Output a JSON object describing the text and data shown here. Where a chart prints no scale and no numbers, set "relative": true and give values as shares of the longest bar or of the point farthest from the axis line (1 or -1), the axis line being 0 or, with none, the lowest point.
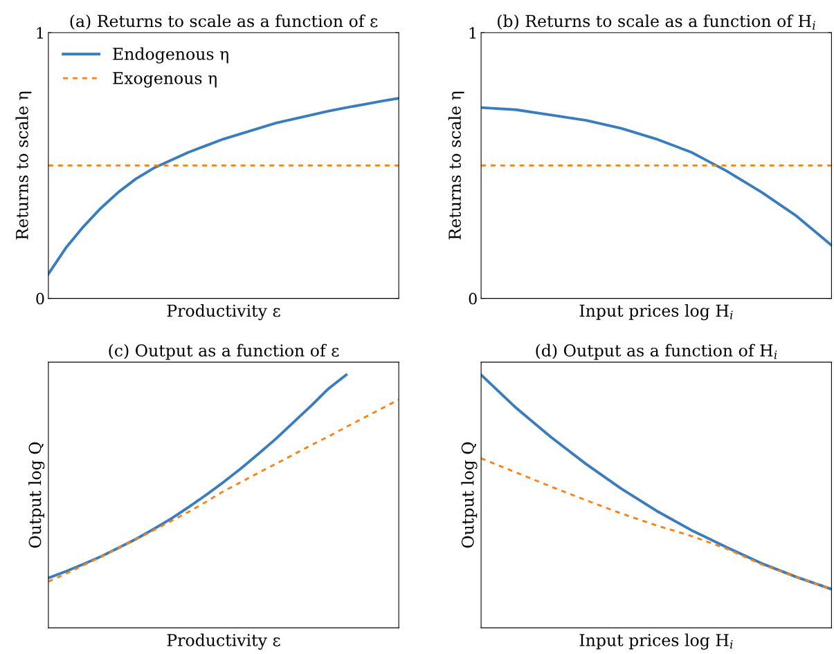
{
  "chart_data": [
    {
      "type": "line",
      "title": "(a) Returns to scale as a function of ε",
      "xlabel": "Productivity ε",
      "ylabel": "Returns to scale η",
      "categories": [
        null,
        null,
        null,
        null,
        null,
        null,
        null,
        null,
        null,
        null,
        null,
        null,
        null,
        null,
        null,
        null,
        null,
        null,
        null,
        null,
        null
      ],
      "series": [
        {
          "name": "Endogenous η",
          "color": "#3a7dbf",
          "line_style": "solid",
          "values": [
            0.092,
            0.19,
            0.27,
            0.34,
            0.4,
            0.45,
            0.49,
            0.52,
            0.55,
            0.575,
            0.6,
            0.62,
            0.64,
            0.66,
            0.675,
            0.69,
            0.705,
            0.718,
            0.73,
            0.742,
            0.753
          ]
        },
        {
          "name": "Exogenous η",
          "color": "#ff7f0e",
          "line_style": "dashed",
          "values": [
            0.5,
            0.5,
            0.5,
            0.5,
            0.5,
            0.5,
            0.5,
            0.5,
            0.5,
            0.5,
            0.5,
            0.5,
            0.5,
            0.5,
            0.5,
            0.5,
            0.5,
            0.5,
            0.5,
            0.5,
            0.5
          ]
        }
      ],
      "ylim": [
        0,
        1
      ],
      "yticks": [
        0,
        1
      ],
      "tick_labels": "y",
      "grid": false,
      "legend": "top left",
      "marker": "none"
    },
    {
      "type": "line",
      "title": "(b) Returns to scale as a function of H$_{i}$",
      "xlabel": "Input prices log H$_{i}$",
      "ylabel": "Returns to scale η",
      "categories": [
        null,
        null,
        null,
        null,
        null,
        null,
        null,
        null,
        null,
        null,
        null
      ],
      "series": [
        {
          "color": "#3a7dbf",
          "line_style": "solid",
          "values": [
            0.718,
            0.71,
            0.69,
            0.67,
            0.64,
            0.6,
            0.55,
            0.48,
            0.4,
            0.31,
            0.2
          ]
        },
        {
          "color": "#ff7f0e",
          "line_style": "dashed",
          "values": [
            0.5,
            0.5,
            0.5,
            0.5,
            0.5,
            0.5,
            0.5,
            0.5,
            0.5,
            0.5,
            0.5
          ]
        }
      ],
      "ylim": [
        0,
        1
      ],
      "yticks": [
        0,
        1
      ],
      "tick_labels": "y",
      "grid": false,
      "marker": "none"
    },
    {
      "type": "line",
      "title": "(c) Output as a function of ε",
      "xlabel": "Productivity ε",
      "ylabel": "Output log Q",
      "relative": true,
      "categories": [
        null,
        null,
        null,
        null,
        null,
        null,
        null,
        null,
        null,
        null,
        null,
        null,
        null,
        null,
        null,
        null,
        null,
        null,
        null,
        null,
        null
      ],
      "series": [
        {
          "color": "#3a7dbf",
          "line_style": "solid",
          "values": [
            0.197,
            0.223,
            0.252,
            0.282,
            0.316,
            0.351,
            0.39,
            0.431,
            0.477,
            0.525,
            0.576,
            0.63,
            0.688,
            0.748,
            0.813,
            0.878,
            0.946,
            1.0,
            null,
            null,
            null
          ]
        },
        {
          "color": "#ff7f0e",
          "line_style": "dashed",
          "values": [
            0.183,
            0.214,
            0.247,
            0.281,
            0.316,
            0.35,
            0.385,
            0.422,
            0.458,
            0.498,
            0.54,
            0.576,
            0.613,
            0.649,
            0.685,
            0.722,
            0.757,
            0.794,
            0.83,
            0.866,
            0.902
          ]
        }
      ],
      "tick_labels": false,
      "grid": false,
      "marker": "none"
    },
    {
      "type": "line",
      "title": "(d) Output as a function of H$_{i}$",
      "xlabel": "Input prices log H$_{i}$",
      "ylabel": "Output log Q",
      "relative": true,
      "categories": [
        null,
        null,
        null,
        null,
        null,
        null,
        null,
        null,
        null,
        null,
        null
      ],
      "series": [
        {
          "color": "#3a7dbf",
          "line_style": "solid",
          "values": [
            1.0,
            0.869,
            0.753,
            0.647,
            0.55,
            0.463,
            0.386,
            0.319,
            0.255,
            0.201,
            0.153
          ]
        },
        {
          "color": "#ff7f0e",
          "line_style": "dashed",
          "values": [
            0.67,
            0.614,
            0.558,
            0.504,
            0.452,
            0.405,
            0.363,
            0.313,
            0.251,
            0.201,
            0.153
          ]
        }
      ],
      "tick_labels": false,
      "grid": false,
      "marker": "none"
    }
  ]
}
